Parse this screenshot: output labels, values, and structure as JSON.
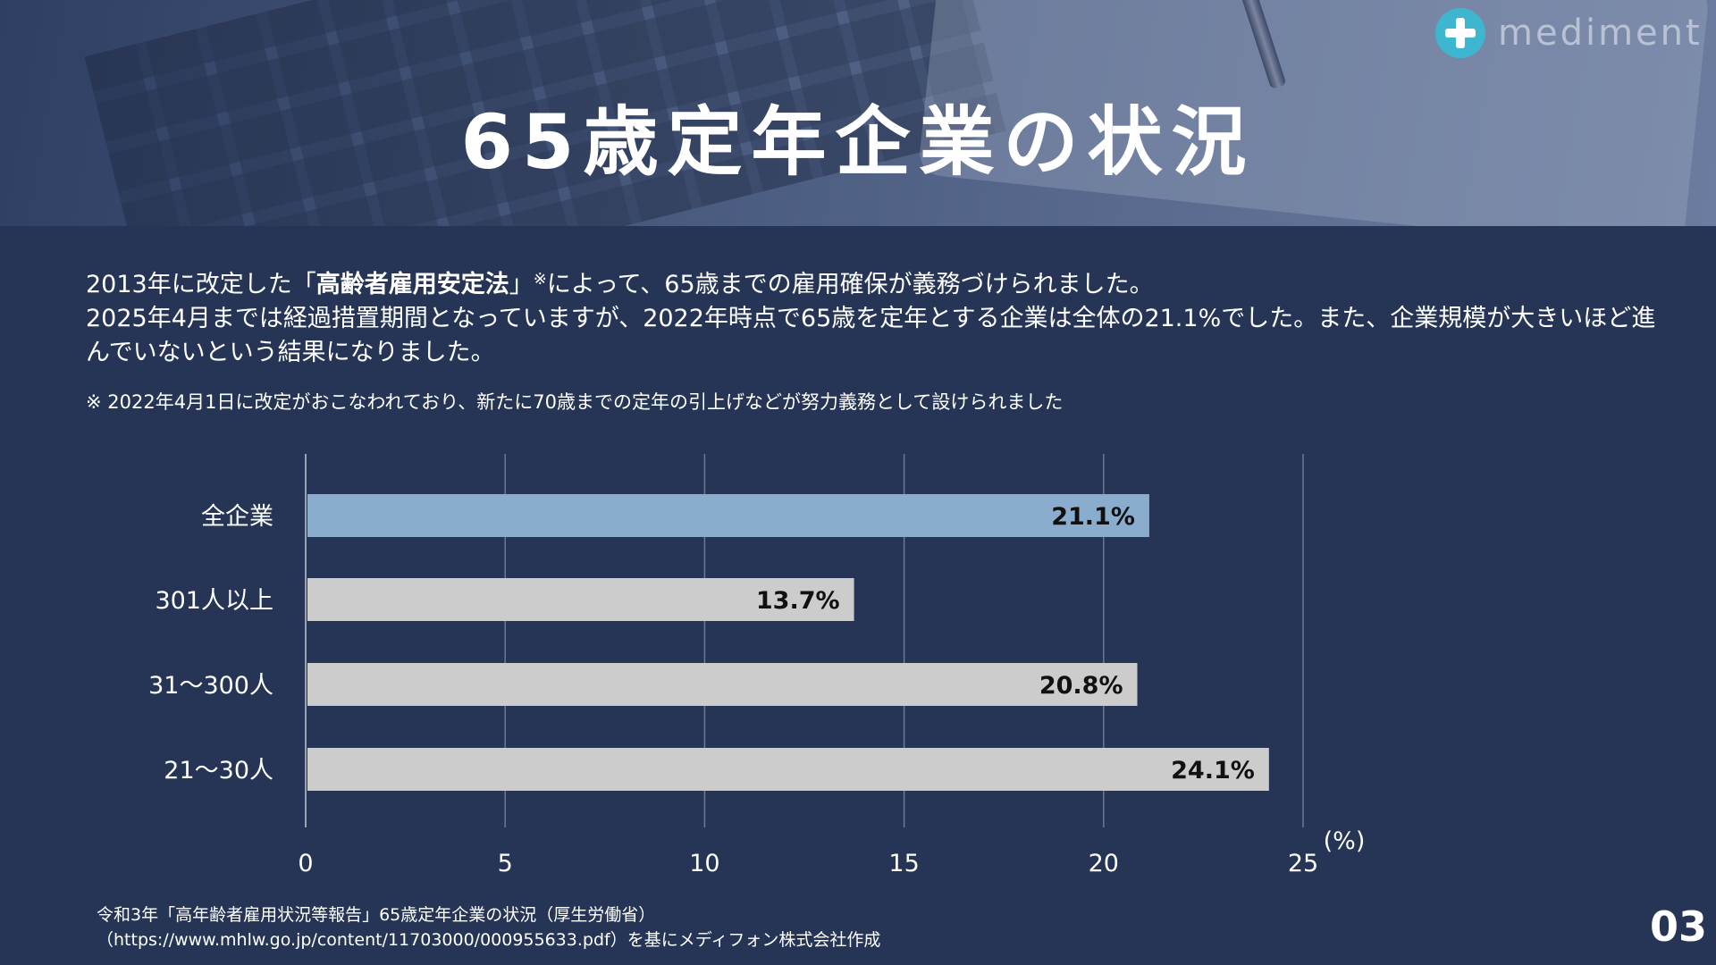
{
  "title": "65歳定年企業の状況",
  "logo": {
    "text": "mediment",
    "icon": "plus-circle-icon",
    "color": "#3fb6d0"
  },
  "intro": {
    "line1_a": "2013年に改定した「",
    "line1_bold": "高齢者雇用安定法",
    "line1_b": "」",
    "line1_mark": "※",
    "line1_c": "によって、65歳までの雇用確保が義務づけられました。",
    "line2": "2025年4月までは経過措置期間となっていますが、2022年時点で65歳を定年とする企業は全体の21.1%でした。また、企業規模が大きいほど進んでいないという結果になりました。"
  },
  "note": "※ 2022年4月1日に改定がおこなわれており、新たに70歳までの定年の引上げなどが努力義務として設けられました",
  "chart_data": {
    "type": "bar",
    "orientation": "horizontal",
    "categories": [
      "全企業",
      "301人以上",
      "31～300人",
      "21～30人"
    ],
    "values": [
      21.1,
      13.7,
      20.8,
      24.1
    ],
    "value_labels": [
      "21.1%",
      "13.7%",
      "20.8%",
      "24.1%"
    ],
    "bar_colors": [
      "#8aaccd",
      "#cccccc",
      "#cccccc",
      "#cccccc"
    ],
    "xlim": [
      0,
      25
    ],
    "xticks": [
      "0",
      "5",
      "10",
      "15",
      "20",
      "25"
    ],
    "unit_label": "(%)",
    "grid": true
  },
  "source": {
    "line1": "令和3年「高年齢者雇用状況等報告」65歳定年企業の状況（厚生労働省）",
    "line2": "（https://www.mhlw.go.jp/content/11703000/000955633.pdf）を基にメディフォン株式会社作成"
  },
  "page_number": "03"
}
